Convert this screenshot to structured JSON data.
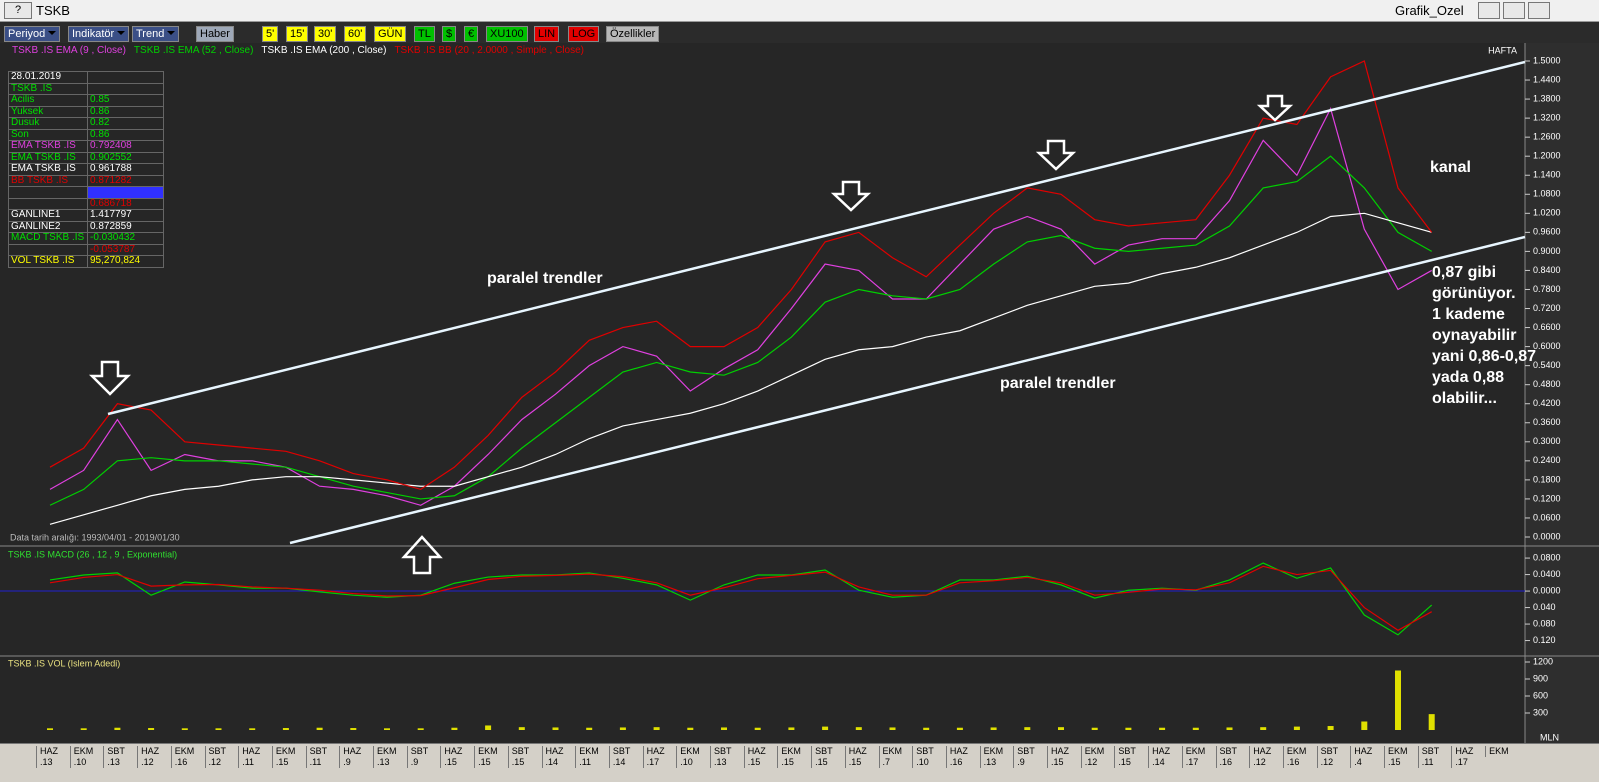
{
  "window": {
    "help": "?",
    "title": "TSKB",
    "right_title": "Grafik_Ozel"
  },
  "toolbar": [
    {
      "label": "Periyod",
      "bg": "#3b4f86",
      "fg": "#ffffff",
      "menu": true
    },
    {
      "label": "Indikatör",
      "bg": "#3b4f86",
      "fg": "#ffffff",
      "menu": true
    },
    {
      "label": "Trend",
      "bg": "#3b4f86",
      "fg": "#ffffff",
      "menu": true
    },
    {
      "label": "Haber",
      "bg": "#9ea8b8",
      "fg": "#000000"
    },
    {
      "label": "5'",
      "bg": "#ffff00",
      "fg": "#000000"
    },
    {
      "label": "15'",
      "bg": "#ffff00",
      "fg": "#000000"
    },
    {
      "label": "30'",
      "bg": "#ffff00",
      "fg": "#000000"
    },
    {
      "label": "60'",
      "bg": "#ffff00",
      "fg": "#000000"
    },
    {
      "label": "GÜN",
      "bg": "#ffff00",
      "fg": "#000000"
    },
    {
      "label": "TL",
      "bg": "#00c000",
      "fg": "#000000"
    },
    {
      "label": "$",
      "bg": "#00c000",
      "fg": "#000000"
    },
    {
      "label": "€",
      "bg": "#00c000",
      "fg": "#000000"
    },
    {
      "label": "XU100",
      "bg": "#00c000",
      "fg": "#000000"
    },
    {
      "label": "LIN",
      "bg": "#e00000",
      "fg": "#000000"
    },
    {
      "label": "LOG",
      "bg": "#e00000",
      "fg": "#000000"
    },
    {
      "label": "Özellikler",
      "bg": "#b8b8b8",
      "fg": "#000000"
    }
  ],
  "info_table": [
    {
      "label": "28.01.2019",
      "color": "#ffffff"
    },
    {
      "label": "TSKB .IS",
      "color": "#00e000"
    },
    {
      "label": "Acilis",
      "value": "0.85",
      "color": "#00e000"
    },
    {
      "label": "Yuksek",
      "value": "0.86",
      "color": "#00e000"
    },
    {
      "label": "Dusuk",
      "value": "0.82",
      "color": "#00e000"
    },
    {
      "label": "Son",
      "value": "0.86",
      "color": "#00e000"
    },
    {
      "label": "EMA TSKB .IS",
      "value": "0.792408",
      "color": "#e040e0"
    },
    {
      "label": "EMA TSKB .IS",
      "value": "0.902552",
      "color": "#00e000"
    },
    {
      "label": "EMA TSKB .IS",
      "value": "0.961788",
      "color": "#ffffff"
    },
    {
      "label": "BB TSKB .IS",
      "value": "0.871282",
      "color": "#e00000"
    },
    {
      "color": "#3030ff"
    },
    {
      "value": "0.686718",
      "color": "#e00000"
    },
    {
      "label": "GANLINE1",
      "value": "1.417797",
      "color": "#ffffff"
    },
    {
      "label": "GANLINE2",
      "value": "0.872859",
      "color": "#ffffff"
    },
    {
      "label": "MACD TSKB .IS",
      "value": "-0.030432",
      "color": "#00e000"
    },
    {
      "value": "-0.053787",
      "color": "#e00000"
    },
    {
      "label": "VOL TSKB .IS",
      "value": "95,270,824",
      "color": "#ffff00"
    }
  ],
  "chart_data": [
    {
      "type": "line",
      "period": "HAFTA",
      "date_range": "Data tarih aralığı: 1993/04/01 - 2019/01/30",
      "annotations": [
        "paralel trendler",
        "paralel trendler",
        "kanal",
        "0,87 gibi\ngörünüyor.\n1 kademe\noynayabilir\nyani 0,86-0,87\nyada 0,88\nolabilir..."
      ],
      "categories": [
        "HAZ\n.13",
        "EKM\n.10",
        "SBT\n.13",
        "HAZ\n.12",
        "EKM\n.16",
        "SBT\n.12",
        "HAZ\n.11",
        "EKM\n.15",
        "SBT\n.11",
        "HAZ\n.9",
        "EKM\n.13",
        "SBT\n.9",
        "HAZ\n.15",
        "EKM\n.15",
        "SBT\n.15",
        "HAZ\n.14",
        "EKM\n.11",
        "SBT\n.14",
        "HAZ\n.17",
        "EKM\n.10",
        "SBT\n.13",
        "HAZ\n.15",
        "EKM\n.15",
        "SBT\n.15",
        "HAZ\n.15",
        "EKM\n.7",
        "SBT\n.10",
        "HAZ\n.16",
        "EKM\n.13",
        "SBT\n.9",
        "HAZ\n.15",
        "EKM\n.12",
        "SBT\n.15",
        "HAZ\n.14",
        "EKM\n.17",
        "SBT\n.16",
        "HAZ\n.12",
        "EKM\n.16",
        "SBT\n.12",
        "HAZ\n.4",
        "EKM\n.15",
        "SBT\n.11",
        "HAZ\n.17",
        "EKM"
      ],
      "series": [
        {
          "name": "TSKB .IS EMA (9 , Close)",
          "color": "#e040e0",
          "values": [
            0.15,
            0.21,
            0.37,
            0.21,
            0.26,
            0.24,
            0.24,
            0.22,
            0.16,
            0.15,
            0.13,
            0.1,
            0.16,
            0.26,
            0.37,
            0.45,
            0.54,
            0.6,
            0.57,
            0.46,
            0.53,
            0.59,
            0.72,
            0.86,
            0.84,
            0.75,
            0.75,
            0.86,
            0.97,
            1.01,
            0.97,
            0.86,
            0.92,
            0.94,
            0.94,
            1.06,
            1.25,
            1.14,
            1.35,
            0.97,
            0.78,
            0.84,
            null,
            null
          ]
        },
        {
          "name": "TSKB .IS EMA (52 , Close)",
          "color": "#00d000",
          "values": [
            0.1,
            0.15,
            0.24,
            0.25,
            0.24,
            0.24,
            0.23,
            0.22,
            0.19,
            0.16,
            0.14,
            0.12,
            0.13,
            0.19,
            0.28,
            0.36,
            0.44,
            0.52,
            0.55,
            0.52,
            0.51,
            0.55,
            0.63,
            0.74,
            0.78,
            0.76,
            0.75,
            0.78,
            0.86,
            0.93,
            0.95,
            0.91,
            0.9,
            0.91,
            0.92,
            0.98,
            1.1,
            1.12,
            1.2,
            1.1,
            0.96,
            0.9,
            null,
            null
          ]
        },
        {
          "name": "TSKB .IS EMA (200 , Close)",
          "color": "#ffffff",
          "values": [
            0.04,
            0.07,
            0.1,
            0.13,
            0.15,
            0.16,
            0.18,
            0.19,
            0.19,
            0.18,
            0.17,
            0.16,
            0.16,
            0.19,
            0.22,
            0.26,
            0.31,
            0.35,
            0.37,
            0.39,
            0.42,
            0.46,
            0.51,
            0.56,
            0.59,
            0.6,
            0.63,
            0.65,
            0.69,
            0.73,
            0.76,
            0.79,
            0.8,
            0.83,
            0.85,
            0.88,
            0.92,
            0.96,
            1.01,
            1.02,
            0.99,
            0.96,
            null,
            null
          ]
        },
        {
          "name": "TSKB .IS BB (20 , 2.0000 , Simple , Close)",
          "color": "#e00000",
          "values": [
            0.22,
            0.28,
            0.42,
            0.4,
            0.3,
            0.29,
            0.28,
            0.27,
            0.24,
            0.2,
            0.18,
            0.15,
            0.22,
            0.32,
            0.44,
            0.52,
            0.62,
            0.66,
            0.68,
            0.6,
            0.6,
            0.66,
            0.78,
            0.93,
            0.96,
            0.88,
            0.82,
            0.92,
            1.02,
            1.1,
            1.08,
            1.0,
            0.98,
            0.99,
            1.0,
            1.14,
            1.32,
            1.3,
            1.45,
            1.5,
            1.1,
            0.96,
            null,
            null
          ]
        }
      ],
      "ylim": [
        0,
        1.5
      ],
      "yticks": [
        {
          "value": 0,
          "label": "0.0000"
        },
        {
          "value": 0.06,
          "label": "0.0600"
        },
        {
          "value": 0.12,
          "label": "0.1200"
        },
        {
          "value": 0.18,
          "label": "0.1800"
        },
        {
          "value": 0.24,
          "label": "0.2400"
        },
        {
          "value": 0.3,
          "label": "0.3000"
        },
        {
          "value": 0.36,
          "label": "0.3600"
        },
        {
          "value": 0.42,
          "label": "0.4200"
        },
        {
          "value": 0.48,
          "label": "0.4800"
        },
        {
          "value": 0.54,
          "label": "0.5400"
        },
        {
          "value": 0.6,
          "label": "0.6000"
        },
        {
          "value": 0.66,
          "label": "0.6600"
        },
        {
          "value": 0.72,
          "label": "0.7200"
        },
        {
          "value": 0.78,
          "label": "0.7800"
        },
        {
          "value": 0.84,
          "label": "0.8400"
        },
        {
          "value": 0.9,
          "label": "0.9000"
        },
        {
          "value": 0.96,
          "label": "0.9600"
        },
        {
          "value": 1.02,
          "label": "1.0200"
        },
        {
          "value": 1.08,
          "label": "1.0800"
        },
        {
          "value": 1.14,
          "label": "1.1400"
        },
        {
          "value": 1.2,
          "label": "1.2000"
        },
        {
          "value": 1.26,
          "label": "1.2600"
        },
        {
          "value": 1.32,
          "label": "1.3200"
        },
        {
          "value": 1.38,
          "label": "1.3800"
        },
        {
          "value": 1.44,
          "label": "1.4400"
        },
        {
          "value": 1.5,
          "label": "1.5000"
        }
      ]
    },
    {
      "type": "line",
      "title": "TSKB .IS MACD (26 , 12 , 9 , Exponential)",
      "series": [
        {
          "color": "#00d000",
          "values": [
            0.027,
            0.039,
            0.044,
            -0.01,
            0.022,
            0.015,
            0.007,
            0.007,
            -0.002,
            -0.01,
            -0.015,
            -0.01,
            0.019,
            0.034,
            0.039,
            0.039,
            0.044,
            0.031,
            0.015,
            -0.022,
            0.015,
            0.039,
            0.039,
            0.051,
            0.002,
            -0.015,
            -0.01,
            0.027,
            0.027,
            0.036,
            0.015,
            -0.017,
            0.002,
            0.007,
            0.002,
            0.027,
            0.068,
            0.031,
            0.056,
            -0.058,
            -0.106,
            -0.034,
            null,
            null
          ]
        },
        {
          "color": "#e00000",
          "values": [
            0.02,
            0.033,
            0.04,
            0.012,
            0.015,
            0.016,
            0.01,
            0.007,
            0.002,
            -0.006,
            -0.012,
            -0.011,
            0.008,
            0.028,
            0.036,
            0.038,
            0.041,
            0.035,
            0.02,
            -0.01,
            0.008,
            0.03,
            0.038,
            0.046,
            0.01,
            -0.01,
            -0.01,
            0.02,
            0.025,
            0.033,
            0.02,
            -0.01,
            -0.003,
            0.005,
            0.003,
            0.02,
            0.06,
            0.04,
            0.05,
            -0.04,
            -0.095,
            -0.05,
            null,
            null
          ]
        }
      ],
      "ylim": [
        -0.155,
        0.102
      ],
      "yticks": [
        {
          "value": 0.08,
          "label": "0.0800"
        },
        {
          "value": 0.04,
          "label": "0.0400"
        },
        {
          "value": 0,
          "label": "0.0000"
        },
        {
          "value": -0.04,
          "label": "0.040"
        },
        {
          "value": -0.08,
          "label": "0.080"
        },
        {
          "value": -0.12,
          "label": "0.120"
        }
      ]
    },
    {
      "type": "bar",
      "title": "TSKB .IS VOL (Islem Adedi)",
      "unit": "MLN",
      "color": "#e0e000",
      "values": [
        30,
        30,
        40,
        35,
        30,
        30,
        30,
        35,
        40,
        35,
        30,
        30,
        40,
        80,
        50,
        45,
        40,
        45,
        50,
        40,
        45,
        40,
        45,
        60,
        50,
        45,
        40,
        40,
        45,
        50,
        50,
        40,
        40,
        40,
        40,
        45,
        50,
        60,
        70,
        150,
        1050,
        280,
        null,
        null
      ],
      "ylim": [
        0,
        1200
      ],
      "yticks": [
        1200,
        900,
        600,
        300
      ]
    }
  ]
}
